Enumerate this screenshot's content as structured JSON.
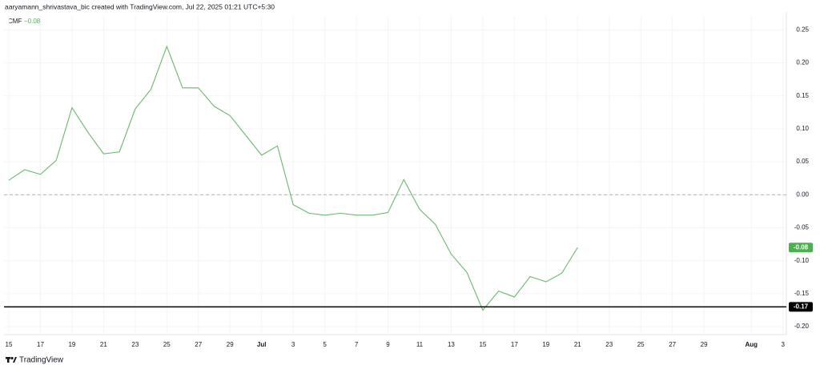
{
  "header": "aaryamann_shrivastava_bic created with TradingView.com, Jul 22, 2025 01:21 UTC+5:30",
  "footer": "TradingView",
  "chart_data": {
    "type": "line",
    "legend_name": "CMF",
    "legend_value": "−0.08",
    "categories": [
      "15",
      null,
      "17",
      null,
      "19",
      null,
      "21",
      null,
      "23",
      null,
      "25",
      null,
      "27",
      null,
      "29",
      null,
      "Jul",
      null,
      "3",
      null,
      "5",
      null,
      "7",
      null,
      "9",
      null,
      "11",
      null,
      "13",
      null,
      "15",
      null,
      "17",
      null,
      "19",
      null,
      "21",
      null,
      "23",
      null,
      "25",
      null,
      "27",
      null,
      "29",
      null,
      null,
      "Aug",
      null,
      "3"
    ],
    "series": [
      {
        "name": "CMF",
        "color": "#66bb6a",
        "values": [
          0.022,
          0.038,
          0.031,
          0.052,
          0.132,
          0.095,
          0.062,
          0.065,
          0.13,
          0.16,
          0.225,
          0.162,
          0.162,
          0.134,
          0.12,
          0.09,
          0.06,
          0.074,
          -0.015,
          -0.028,
          -0.031,
          -0.028,
          -0.031,
          -0.031,
          -0.027,
          0.023,
          -0.022,
          -0.045,
          -0.09,
          -0.118,
          -0.175,
          -0.146,
          -0.155,
          -0.124,
          -0.132,
          -0.119,
          -0.08,
          null,
          null,
          null,
          null,
          null,
          null,
          null,
          null,
          null,
          null,
          null,
          null,
          null
        ]
      }
    ],
    "ylim": [
      -0.212,
      0.271
    ],
    "yticks": [
      0.25,
      {
        "value": 0.2,
        "label": "0.20"
      },
      0.15,
      {
        "value": 0.1,
        "label": "0.10"
      },
      0.05,
      {
        "value": 0,
        "label": "0.00"
      },
      -0.05,
      {
        "value": -0.1,
        "label": "-0.10"
      },
      -0.15,
      {
        "value": -0.2,
        "label": "-0.20"
      }
    ],
    "grid": true,
    "zero_line": {
      "value": 0,
      "color": "#aaaaaa"
    },
    "last_value_label": {
      "value": -0.08,
      "label": "-0.08",
      "color": "#4caf50"
    },
    "horizontal_line": {
      "value": -0.17,
      "label": "-0.17",
      "color": "#000000"
    }
  }
}
